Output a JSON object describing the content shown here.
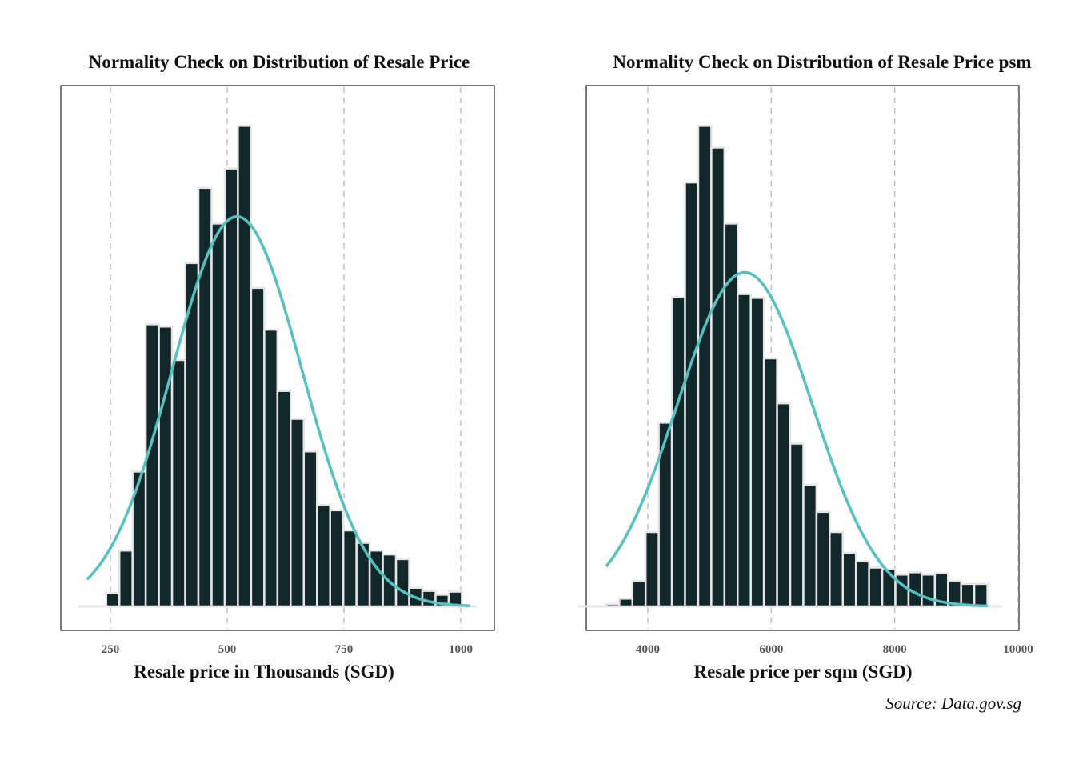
{
  "chart_data": [
    {
      "type": "bar",
      "subtype": "histogram with normal curve overlay",
      "title": "Normality Check on Distribution of Resale Price",
      "xlabel": "Resale price in Thousands (SGD)",
      "ylabel": "",
      "xlim": [
        150,
        1035
      ],
      "xticks": [
        250,
        500,
        750,
        1000
      ],
      "xtick_labels": [
        "250",
        "500",
        "750",
        "1000"
      ],
      "grid": "vertical dashed at x ticks",
      "bin_start": 241,
      "bin_width": 28.2,
      "counts_relative": [
        17,
        72,
        174,
        364,
        361,
        318,
        443,
        540,
        494,
        565,
        620,
        411,
        357,
        278,
        242,
        200,
        131,
        124,
        98,
        82,
        72,
        67,
        61,
        24,
        20,
        15,
        19
      ],
      "normal_curve": {
        "mean": 521,
        "sd": 139,
        "peak_relative": 503,
        "x_range": [
          200,
          1020
        ]
      },
      "y_max_relative": 640
    },
    {
      "type": "bar",
      "subtype": "histogram with normal curve overlay",
      "title": "Normality Check on Distribution of Resale Price psm",
      "xlabel": "Resale price per sqm (SGD)",
      "ylabel": "",
      "xlim": [
        3000,
        10020
      ],
      "xticks": [
        4000,
        6000,
        8000,
        10000
      ],
      "xtick_labels": [
        "4000",
        "6000",
        "8000",
        "10000"
      ],
      "grid": "vertical dashed at x ticks",
      "bin_start": 3325,
      "bin_width": 213,
      "counts_relative": [
        3,
        10,
        33,
        96,
        237,
        399,
        547,
        620,
        592,
        494,
        403,
        398,
        320,
        262,
        210,
        157,
        122,
        96,
        69,
        58,
        50,
        48,
        41,
        44,
        41,
        43,
        33,
        29,
        29
      ],
      "normal_curve": {
        "mean": 5571,
        "sd": 1090,
        "peak_relative": 431,
        "x_range": [
          3325,
          9506
        ]
      },
      "y_max_relative": 640
    }
  ],
  "colors": {
    "bar_fill": "#11272a",
    "bar_edge": "#e6e6e6",
    "curve": "#55c1c1",
    "grid": "#b8b8b8"
  },
  "caption": "Source: Data.gov.sg"
}
